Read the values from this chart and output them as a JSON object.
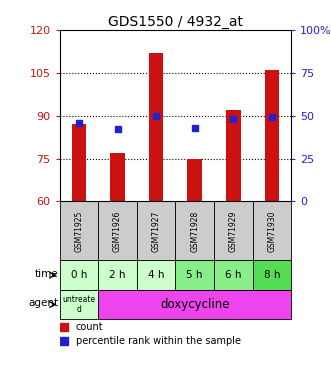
{
  "title": "GDS1550 / 4932_at",
  "samples": [
    "GSM71925",
    "GSM71926",
    "GSM71927",
    "GSM71928",
    "GSM71929",
    "GSM71930"
  ],
  "time_labels": [
    "0 h",
    "2 h",
    "4 h",
    "5 h",
    "6 h",
    "8 h"
  ],
  "count_values": [
    87,
    77,
    112,
    75,
    92,
    106
  ],
  "percentile_values": [
    46,
    42,
    50,
    43,
    48,
    49
  ],
  "ylim_left": [
    60,
    120
  ],
  "ylim_right": [
    0,
    100
  ],
  "yticks_left": [
    60,
    75,
    90,
    105,
    120
  ],
  "yticks_right": [
    0,
    25,
    50,
    75,
    100
  ],
  "bar_color": "#cc1111",
  "dot_color": "#2222cc",
  "sample_row_color": "#cccccc",
  "time_colors": [
    "#ccffcc",
    "#ccffcc",
    "#ccffcc",
    "#88ee88",
    "#88ee88",
    "#55dd55"
  ],
  "agent_color_untreated": "#ccffcc",
  "agent_color_doxy": "#ee44ee",
  "left_axis_color": "#cc1111",
  "right_axis_color": "#2222cc"
}
